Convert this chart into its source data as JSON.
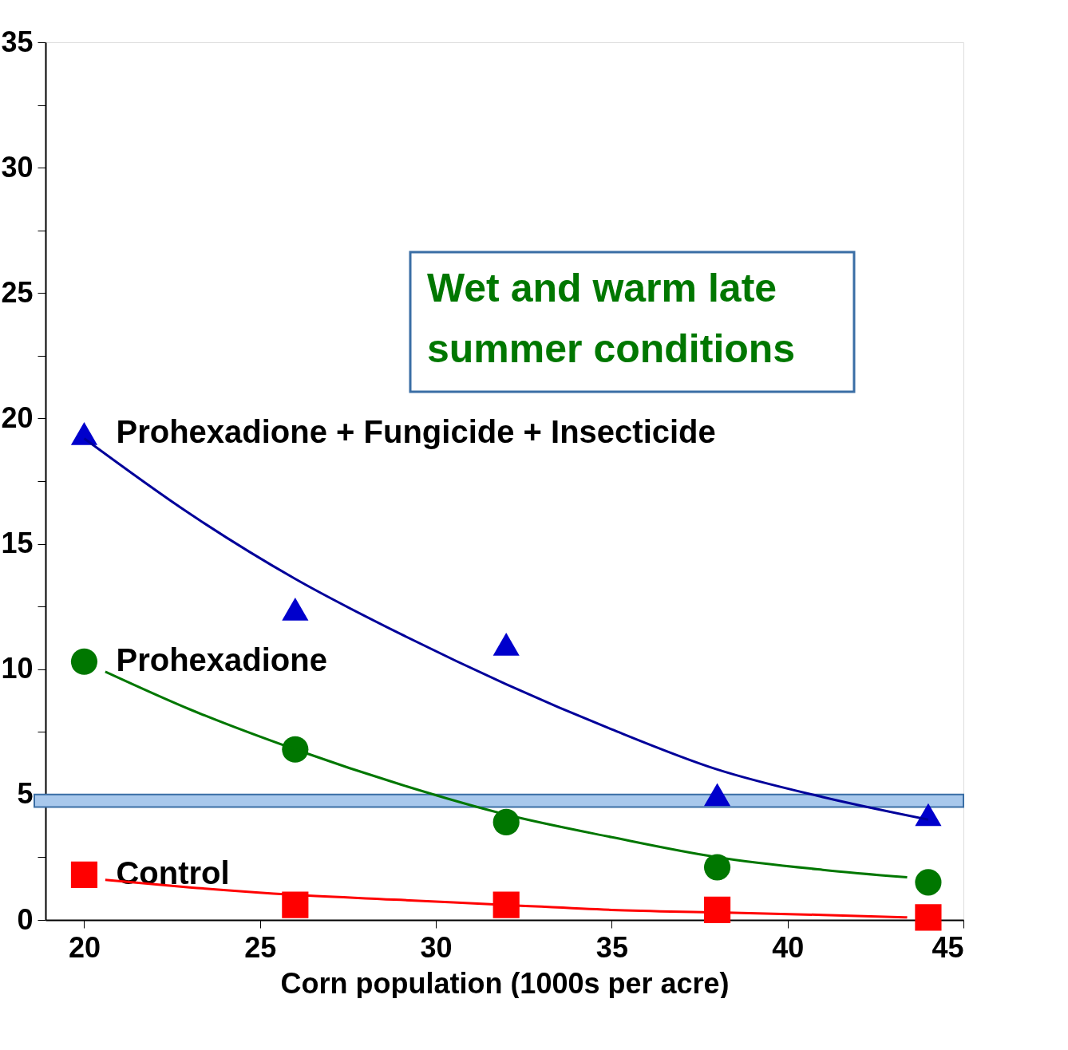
{
  "chart_data": {
    "type": "scatter",
    "xlabel": "Corn population (1000s per acre)",
    "xlim": [
      18.9,
      45
    ],
    "xticks": [
      20,
      25,
      30,
      35,
      40,
      45
    ],
    "ylim": [
      0,
      35
    ],
    "yticks": [
      0,
      {
        "value": 2.5,
        "label": null
      },
      5,
      {
        "value": 7.5,
        "label": null
      },
      10,
      {
        "value": 12.5,
        "label": null
      },
      15,
      {
        "value": 17.5,
        "label": null
      },
      20,
      {
        "value": 22.5,
        "label": null
      },
      25,
      {
        "value": 27.5,
        "label": null
      },
      30,
      {
        "value": 32.5,
        "label": null
      },
      35
    ],
    "grid": false,
    "series": [
      {
        "name": "Prohexadione + Fungicide + Insecticide",
        "color": "#0000cc",
        "marker": "triangle",
        "x": [
          20,
          26,
          32,
          38,
          44
        ],
        "values": [
          19.4,
          12.4,
          11.0,
          5.0,
          4.2
        ]
      },
      {
        "name": "Prohexadione",
        "color": "#007700",
        "marker": "circle",
        "x": [
          20,
          26,
          32,
          38,
          44
        ],
        "values": [
          10.3,
          6.8,
          3.9,
          2.1,
          1.5
        ]
      },
      {
        "name": "Control",
        "color": "#ff0000",
        "marker": "square",
        "x": [
          20,
          26,
          32,
          38,
          44
        ],
        "values": [
          1.8,
          0.6,
          0.6,
          0.4,
          0.1
        ]
      },
      {
        "type": "line",
        "color": "#00009a",
        "x": [
          20,
          23,
          26,
          29,
          32,
          35,
          38,
          41,
          44
        ],
        "values": [
          19.2,
          16.2,
          13.6,
          11.4,
          9.4,
          7.6,
          6.0,
          4.9,
          4.0
        ]
      },
      {
        "type": "line",
        "color": "#007700",
        "x": [
          20.6,
          23,
          26,
          29,
          32,
          35,
          38,
          41,
          43.4
        ],
        "values": [
          9.9,
          8.4,
          6.8,
          5.4,
          4.2,
          3.3,
          2.5,
          2.0,
          1.7
        ]
      },
      {
        "type": "line",
        "color": "#ff0000",
        "x": [
          20.6,
          23,
          26,
          29,
          32,
          35,
          38,
          41,
          43.4
        ],
        "values": [
          1.6,
          1.3,
          1.0,
          0.8,
          0.6,
          0.4,
          0.3,
          0.2,
          0.1
        ]
      }
    ],
    "bands": [
      {
        "axis": "y",
        "from": 4.5,
        "to": 5.0,
        "color": "#a8c8ec"
      }
    ],
    "annotations": [
      "Wet and warm late summer conditions"
    ]
  }
}
